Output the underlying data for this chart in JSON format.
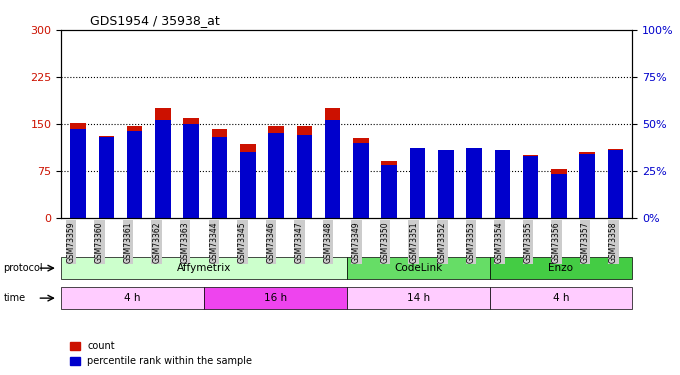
{
  "title": "GDS1954 / 35938_at",
  "samples": [
    "GSM73359",
    "GSM73360",
    "GSM73361",
    "GSM73362",
    "GSM73363",
    "GSM73344",
    "GSM73345",
    "GSM73346",
    "GSM73347",
    "GSM73348",
    "GSM73349",
    "GSM73350",
    "GSM73351",
    "GSM73352",
    "GSM73353",
    "GSM73354",
    "GSM73355",
    "GSM73356",
    "GSM73357",
    "GSM73358"
  ],
  "count_values": [
    152,
    130,
    147,
    175,
    160,
    142,
    118,
    147,
    146,
    175,
    128,
    90,
    110,
    108,
    112,
    108,
    100,
    78,
    105,
    110
  ],
  "percentile_values": [
    47,
    43,
    46,
    52,
    50,
    43,
    35,
    45,
    44,
    52,
    40,
    28,
    37,
    36,
    37,
    36,
    33,
    23,
    34,
    36
  ],
  "bar_color_red": "#cc1100",
  "bar_color_blue": "#0000cc",
  "ylim_left": [
    0,
    300
  ],
  "ylim_right": [
    0,
    100
  ],
  "yticks_left": [
    0,
    75,
    150,
    225,
    300
  ],
  "yticks_right": [
    0,
    25,
    50,
    75,
    100
  ],
  "ytick_labels_right": [
    "0%",
    "25%",
    "50%",
    "75%",
    "100%"
  ],
  "hlines": [
    75,
    150,
    225
  ],
  "protocol_groups": [
    {
      "label": "Affymetrix",
      "start": 0,
      "end": 10,
      "color": "#ccffcc"
    },
    {
      "label": "CodeLink",
      "start": 10,
      "end": 15,
      "color": "#66dd66"
    },
    {
      "label": "Enzo",
      "start": 15,
      "end": 20,
      "color": "#44cc44"
    }
  ],
  "time_groups": [
    {
      "label": "4 h",
      "start": 0,
      "end": 5,
      "color": "#ffccff"
    },
    {
      "label": "16 h",
      "start": 5,
      "end": 10,
      "color": "#ee44ee"
    },
    {
      "label": "14 h",
      "start": 10,
      "end": 15,
      "color": "#ffccff"
    },
    {
      "label": "4 h",
      "start": 15,
      "end": 20,
      "color": "#ffccff"
    }
  ],
  "legend_count_label": "count",
  "legend_pct_label": "percentile rank within the sample",
  "xlabel_color_left": "#cc1100",
  "xlabel_color_right": "#0000cc",
  "bg_color": "#ffffff",
  "plot_bg_color": "#ffffff",
  "tick_label_bg": "#cccccc"
}
